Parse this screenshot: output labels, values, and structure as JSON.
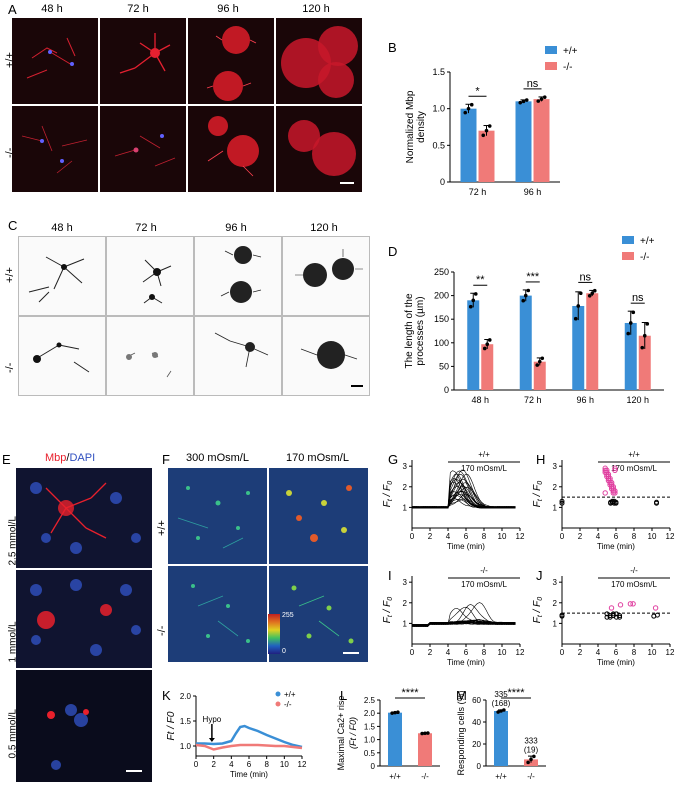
{
  "panels": {
    "A": "A",
    "B": "B",
    "C": "C",
    "D": "D",
    "E": "E",
    "F": "F",
    "G": "G",
    "H": "H",
    "I": "I",
    "J": "J",
    "K": "K",
    "L": "L",
    "M": "M"
  },
  "timepoints": [
    "48 h",
    "72 h",
    "96 h",
    "120 h"
  ],
  "genotypes": {
    "wt": "+/+",
    "ko": "-/-"
  },
  "colors": {
    "wt": "#3a8fd6",
    "ko": "#f07a78",
    "stain_red": "#e8202c",
    "dapi_blue": "#3050c0"
  },
  "panelE": {
    "title_mbp": "Mbp",
    "title_sep": "/",
    "title_dapi": "DAPI",
    "rows": [
      "2.5 mmol/L",
      "1 mmol/L",
      "0.5 mmol/L"
    ]
  },
  "panelF": {
    "cols": [
      "300 mOsm/L",
      "170 mOsm/L"
    ],
    "scale_max": "255",
    "scale_min": "0"
  },
  "traces": {
    "stim": "170 mOsm/L",
    "xlabel": "Time (min)",
    "ylabel": "F",
    "ylabel_t": "t",
    "ylabel_sep": " / F",
    "ylabel_0": "0",
    "yticks": [
      "1",
      "2",
      "3"
    ],
    "xticks": [
      "0",
      "2",
      "4",
      "6",
      "8",
      "10",
      "12"
    ]
  },
  "panelK": {
    "hypo": "Hypo",
    "yticks": [
      "1.0",
      "1.5",
      "2.0"
    ]
  },
  "chart_data": [
    {
      "panel": "B",
      "type": "bar",
      "categories": [
        "72 h",
        "96 h"
      ],
      "ylabel": "Normalized Mbp density",
      "ylim": [
        0,
        1.5
      ],
      "yticks": [
        "0",
        "0.5",
        "1.0",
        "1.5"
      ],
      "series": [
        {
          "name": "+/+",
          "values": [
            1.0,
            1.1
          ],
          "err": [
            0.06,
            0.02
          ]
        },
        {
          "name": "-/-",
          "values": [
            0.7,
            1.13
          ],
          "err": [
            0.07,
            0.03
          ]
        }
      ],
      "sig": [
        "*",
        "ns"
      ],
      "legend": "top-right"
    },
    {
      "panel": "D",
      "type": "bar",
      "categories": [
        "48 h",
        "72 h",
        "96 h",
        "120 h"
      ],
      "ylabel": "The length of the processes (µm)",
      "ylim": [
        0,
        250
      ],
      "yticks": [
        "0",
        "50",
        "100",
        "150",
        "200",
        "250"
      ],
      "series": [
        {
          "name": "+/+",
          "values": [
            190,
            200,
            178,
            142
          ],
          "err": [
            15,
            12,
            30,
            25
          ]
        },
        {
          "name": "-/-",
          "values": [
            97,
            60,
            205,
            115
          ],
          "err": [
            10,
            8,
            6,
            28
          ]
        }
      ],
      "sig": [
        "**",
        "***",
        "ns",
        "ns"
      ],
      "legend": "top-right"
    },
    {
      "panel": "L",
      "type": "bar",
      "categories": [
        "+/+",
        "-/-"
      ],
      "ylabel": "Maximal Ca2+ rise (Ft / F0)",
      "ylim": [
        0,
        2.5
      ],
      "yticks": [
        "0",
        "0.5",
        "1.0",
        "1.5",
        "2.0",
        "2.5"
      ],
      "series": [
        {
          "name": "bars",
          "values": [
            2.02,
            1.24
          ],
          "err": [
            0.02,
            0.01
          ]
        }
      ],
      "sig": [
        "****"
      ]
    },
    {
      "panel": "M",
      "type": "bar",
      "categories": [
        "+/+",
        "-/-"
      ],
      "ylabel": "Responding cells (%)",
      "ylim": [
        0,
        60
      ],
      "yticks": [
        "0",
        "20",
        "40",
        "60"
      ],
      "series": [
        {
          "name": "bars",
          "values": [
            50,
            6
          ],
          "err": [
            1,
            3
          ]
        }
      ],
      "sig": [
        "****"
      ],
      "annotations": [
        {
          "n": "335",
          "r": "(168)"
        },
        {
          "n": "333",
          "r": "(19)"
        }
      ]
    },
    {
      "panel": "K",
      "type": "line",
      "xlabel": "Time (min)",
      "ylabel": "Ft / F0",
      "xlim": [
        0,
        12
      ],
      "ylim": [
        0.8,
        2.0
      ],
      "series": [
        {
          "name": "+/+",
          "x": [
            0,
            1,
            2,
            3,
            4,
            4.5,
            5,
            5.5,
            6,
            7,
            8,
            9,
            10,
            11,
            12
          ],
          "y": [
            1.05,
            1.05,
            1.04,
            1.05,
            1.1,
            1.25,
            1.38,
            1.4,
            1.36,
            1.3,
            1.22,
            1.15,
            1.08,
            1.02,
            0.98
          ]
        },
        {
          "name": "-/-",
          "x": [
            0,
            1,
            2,
            3,
            4,
            5,
            6,
            7,
            8,
            9,
            10,
            11,
            12
          ],
          "y": [
            1.02,
            1.0,
            0.93,
            0.97,
            1.0,
            1.02,
            1.02,
            1.02,
            1.01,
            1.0,
            1.0,
            0.98,
            0.96
          ]
        }
      ]
    }
  ]
}
